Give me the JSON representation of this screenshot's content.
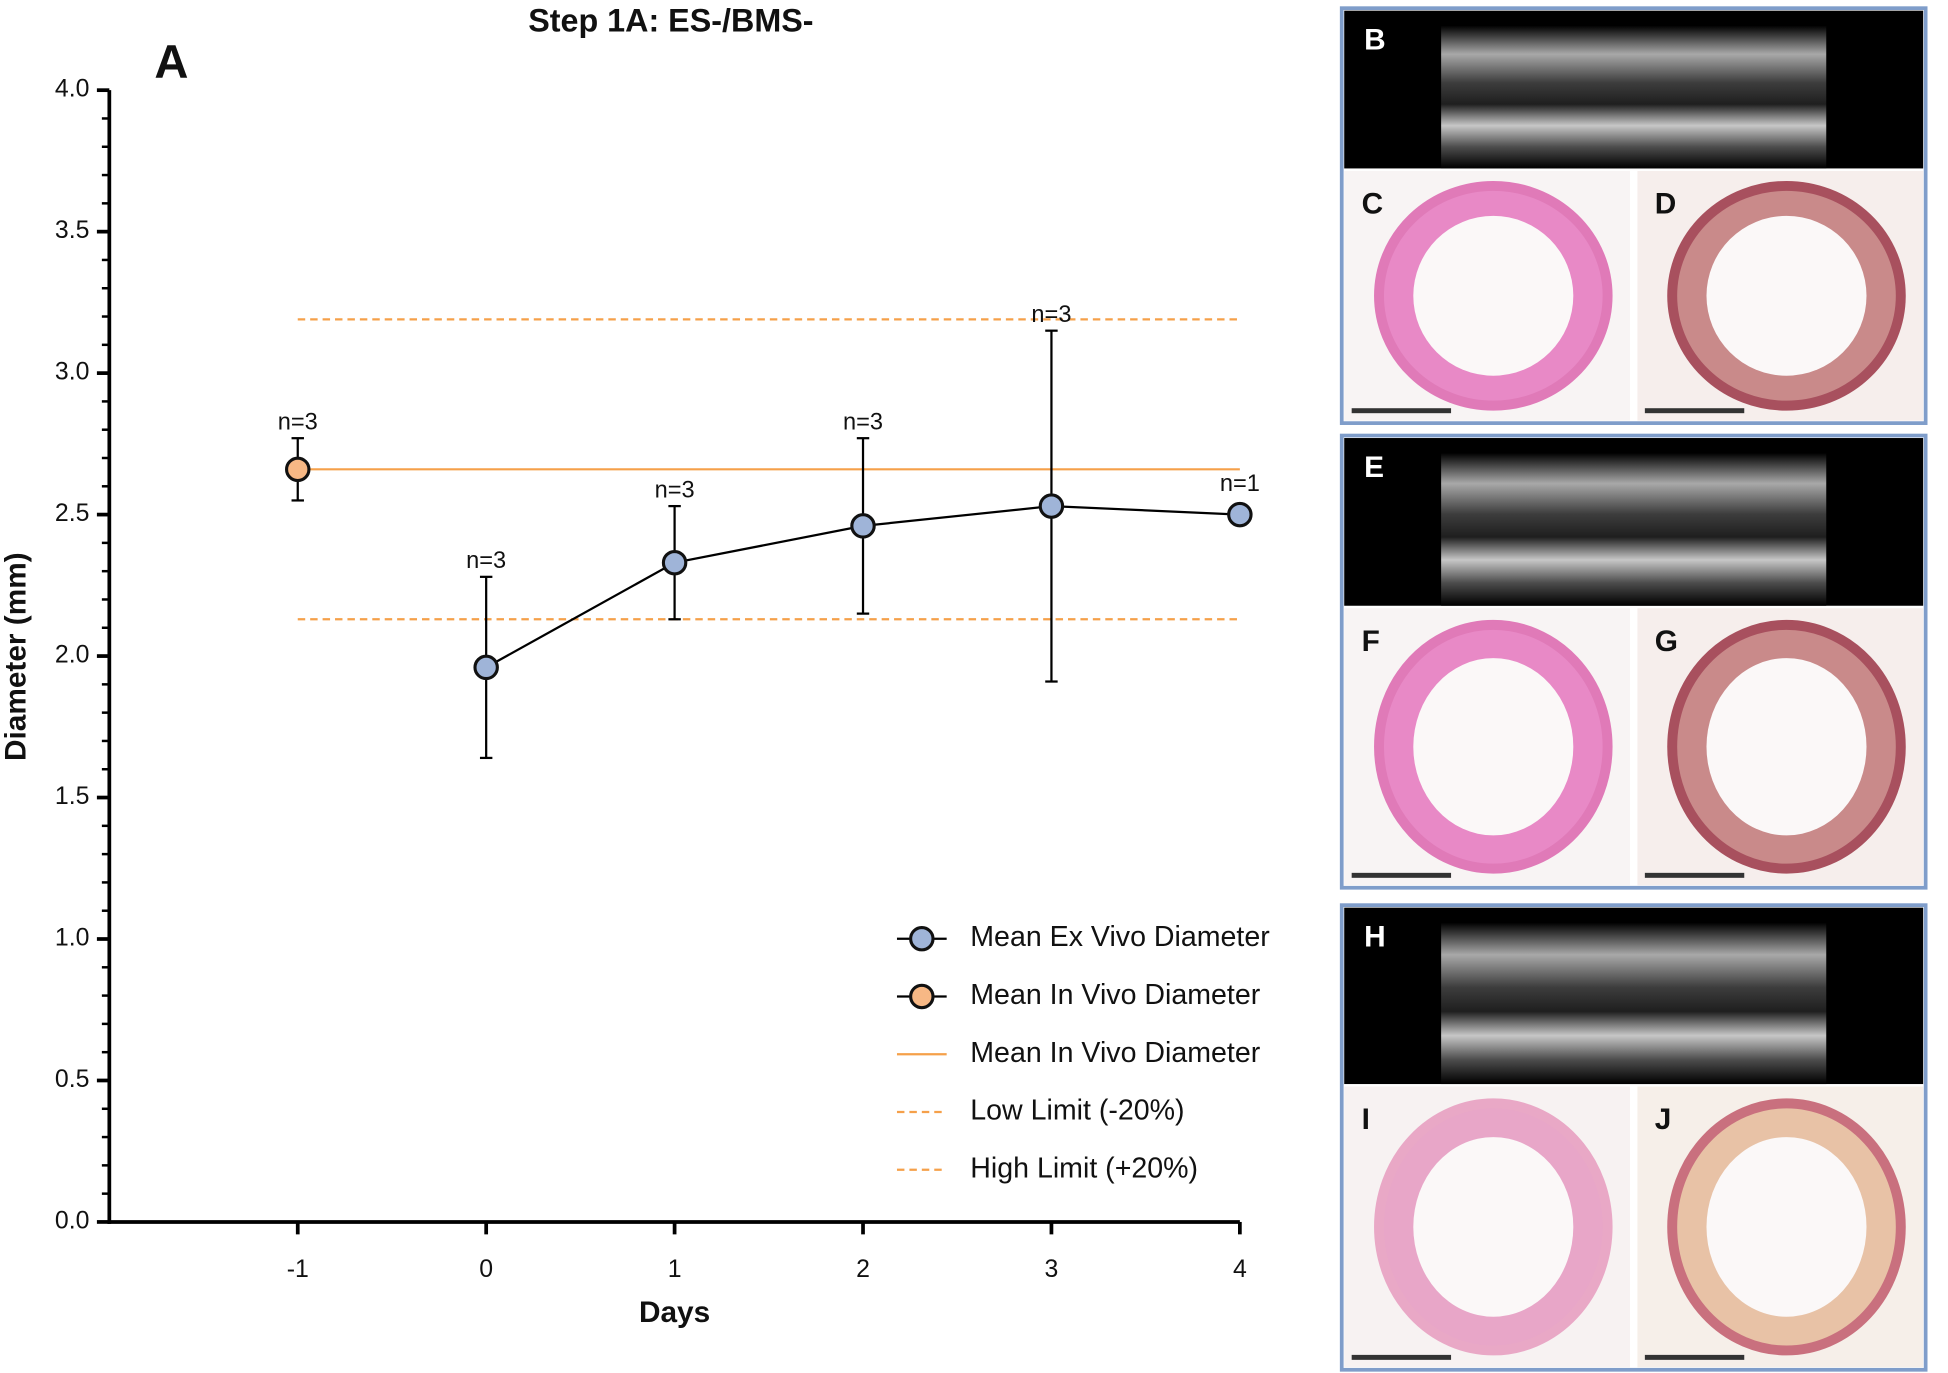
{
  "chart_data": {
    "type": "line",
    "title": "Step 1A: ES-/BMS-",
    "panel_label": "A",
    "xlabel": "Days",
    "ylabel": "Diameter (mm)",
    "xlim": [
      -2,
      4
    ],
    "xticks": [
      -1,
      0,
      1,
      2,
      3,
      4
    ],
    "ylim": [
      0,
      4
    ],
    "yticks": [
      {
        "value": 0,
        "label": "0.0"
      },
      0.5,
      {
        "value": 1,
        "label": "1.0"
      },
      1.5,
      {
        "value": 2,
        "label": "2.0"
      },
      2.5,
      {
        "value": 3,
        "label": "3.0"
      },
      3.5,
      {
        "value": 4,
        "label": "4.0"
      }
    ],
    "series": [
      {
        "name": "Mean Ex Vivo Diameter",
        "color": "#9fb4d8",
        "x": [
          0,
          1,
          2,
          3,
          4
        ],
        "values": [
          1.96,
          2.33,
          2.46,
          2.53,
          2.5
        ],
        "errors": [
          0.32,
          0.2,
          0.31,
          0.62,
          null
        ],
        "value_labels": [
          "n=3",
          "n=3",
          "n=3",
          "n=3",
          "n=1"
        ],
        "connected": true
      },
      {
        "name": "Mean In Vivo Diameter",
        "color": "#f7b885",
        "x": [
          -1
        ],
        "values": [
          2.66
        ],
        "errors": [
          0.11
        ],
        "value_labels": [
          "n=3"
        ],
        "connected": false
      }
    ],
    "reference_lines": [
      {
        "name": "Mean In Vivo Diameter",
        "value": 2.66,
        "color": "#f5a04a",
        "style": "solid"
      },
      {
        "name": "Low Limit (-20%)",
        "value": 2.13,
        "color": "#f5a04a",
        "style": "dashed"
      },
      {
        "name": "High Limit (+20%)",
        "value": 3.19,
        "color": "#f5a04a",
        "style": "dashed"
      }
    ]
  },
  "panels": [
    {
      "label": "B"
    },
    {
      "label": "C"
    },
    {
      "label": "D"
    },
    {
      "label": "E"
    },
    {
      "label": "F"
    },
    {
      "label": "G"
    },
    {
      "label": "H"
    },
    {
      "label": "I"
    },
    {
      "label": "J"
    }
  ]
}
